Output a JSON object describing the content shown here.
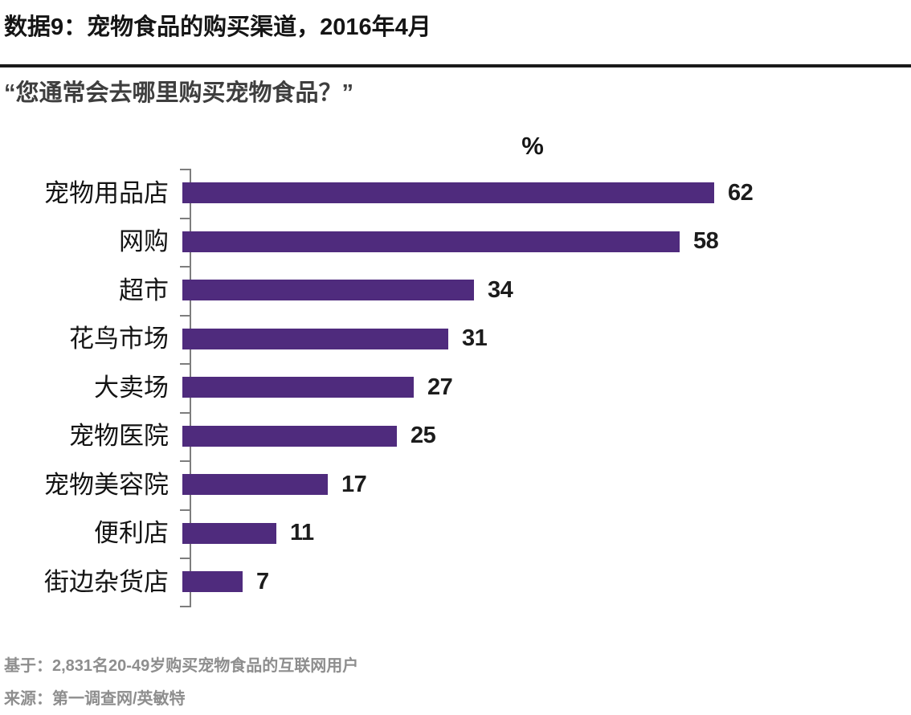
{
  "header": {
    "title": "数据9：宠物食品的购买渠道，2016年4月",
    "subtitle": "“您通常会去哪里购买宠物食品？”"
  },
  "chart_data": {
    "type": "bar",
    "orientation": "horizontal",
    "unit_label": "%",
    "categories": [
      "宠物用品店",
      "网购",
      "超市",
      "花鸟市场",
      "大卖场",
      "宠物医院",
      "宠物美容院",
      "便利店",
      "街边杂货店"
    ],
    "values": [
      62,
      58,
      34,
      31,
      27,
      25,
      17,
      11,
      7
    ],
    "xlim": [
      0,
      65
    ],
    "grid": false,
    "legend": false,
    "value_labels_shown": true,
    "bar_color": "#4f2b7d",
    "axis_color": "#7d7d7d"
  },
  "footer": {
    "base_note": "基于：2,831名20-49岁购买宠物食品的互联网用户",
    "source_note": "来源：第一调查网/英敏特"
  }
}
